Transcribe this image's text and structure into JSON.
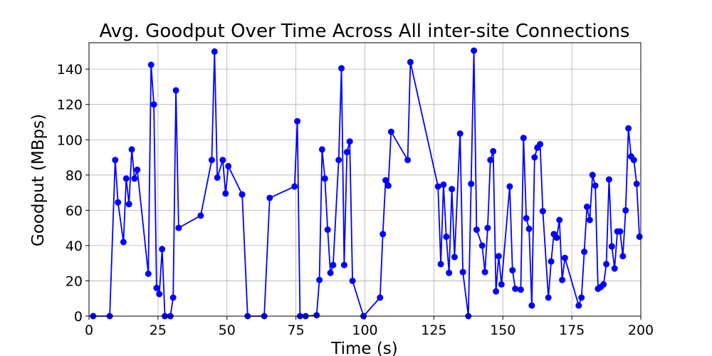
{
  "chart_data": {
    "type": "line",
    "title": "Avg. Goodput Over Time Across All inter-site Connections",
    "xlabel": "Time (s)",
    "ylabel": "Goodput (MBps)",
    "xlim": [
      0,
      200
    ],
    "ylim": [
      0,
      155
    ],
    "xticks": [
      0,
      25,
      50,
      75,
      100,
      125,
      150,
      175,
      200
    ],
    "yticks": [
      0,
      20,
      40,
      60,
      80,
      100,
      120,
      140
    ],
    "grid": true,
    "colors": {
      "series": "#0000ff"
    },
    "series": [
      {
        "x": [
          1.5,
          7.5,
          9.5,
          10.5,
          12.5,
          13.5,
          14.5,
          15.5,
          16.5,
          17.5,
          21.5,
          22.5,
          23.5,
          24.5,
          25.5,
          26.5,
          27.5,
          29.5,
          30.5,
          31.5,
          32.5,
          40.5,
          44.5,
          45.5,
          46.5,
          48.5,
          49.5,
          50.5,
          55.5,
          57.5,
          63.5,
          65.5,
          74.5,
          75.5,
          76.5,
          78.5,
          82.5,
          83.5,
          84.5,
          85.5,
          86.5,
          87.5,
          88.5,
          90.5,
          91.5,
          92.5,
          93.5,
          94.5,
          95.5,
          99.5,
          105.5,
          106.5,
          107.5,
          108.5,
          109.5,
          115.5,
          116.5,
          126.5,
          127.5,
          128.5,
          129.5,
          130.5,
          131.5,
          132.5,
          134.5,
          135.5,
          137.5,
          138.5,
          139.5,
          140.5,
          142.5,
          143.5,
          144.5,
          145.5,
          146.5,
          147.5,
          148.5,
          149.5,
          152.5,
          153.5,
          154.5,
          156.5,
          157.5,
          158.5,
          159.5,
          160.5,
          161.5,
          162.5,
          163.5,
          164.5,
          166.5,
          167.5,
          168.5,
          169.5,
          170.5,
          171.5,
          172.5,
          177.5,
          178.5,
          179.5,
          180.5,
          181.5,
          182.5,
          183.5,
          184.5,
          185.5,
          186.5,
          187.5,
          188.5,
          189.5,
          190.5,
          191.5,
          192.5,
          193.5,
          194.5,
          195.5,
          196.5,
          197.5,
          198.5,
          199.5
        ],
        "values": [
          0,
          0,
          88.5,
          64.5,
          42,
          78,
          63.5,
          94.5,
          78,
          83,
          24,
          142.5,
          120,
          16,
          12.5,
          38,
          0,
          0,
          10.5,
          128,
          50,
          57,
          88.5,
          150,
          78.5,
          88.5,
          69.5,
          85,
          69,
          0,
          0,
          67,
          73.5,
          110.5,
          0,
          0,
          0.5,
          20.5,
          94.5,
          78,
          49,
          24.5,
          29,
          88.5,
          140.5,
          29,
          93,
          99,
          20,
          0,
          10.5,
          46.5,
          77,
          74,
          104.5,
          88.5,
          144,
          73.5,
          29.5,
          74.5,
          45,
          24.5,
          72,
          33.5,
          103.5,
          25,
          0,
          75,
          150.5,
          49,
          40,
          25,
          50,
          88.5,
          93.5,
          14,
          34,
          18,
          73.5,
          26,
          15.5,
          15,
          101,
          55.5,
          49.5,
          6,
          90,
          95.5,
          97.5,
          59.5,
          10.5,
          31,
          46.5,
          44.5,
          54.5,
          20.5,
          33,
          6,
          10.5,
          36.5,
          62,
          54.5,
          80,
          74,
          15.5,
          16.5,
          18,
          29.5,
          77.5,
          39.5,
          27,
          48,
          48,
          34,
          60,
          106.5,
          90.5,
          88.5,
          75,
          45
        ]
      }
    ]
  }
}
